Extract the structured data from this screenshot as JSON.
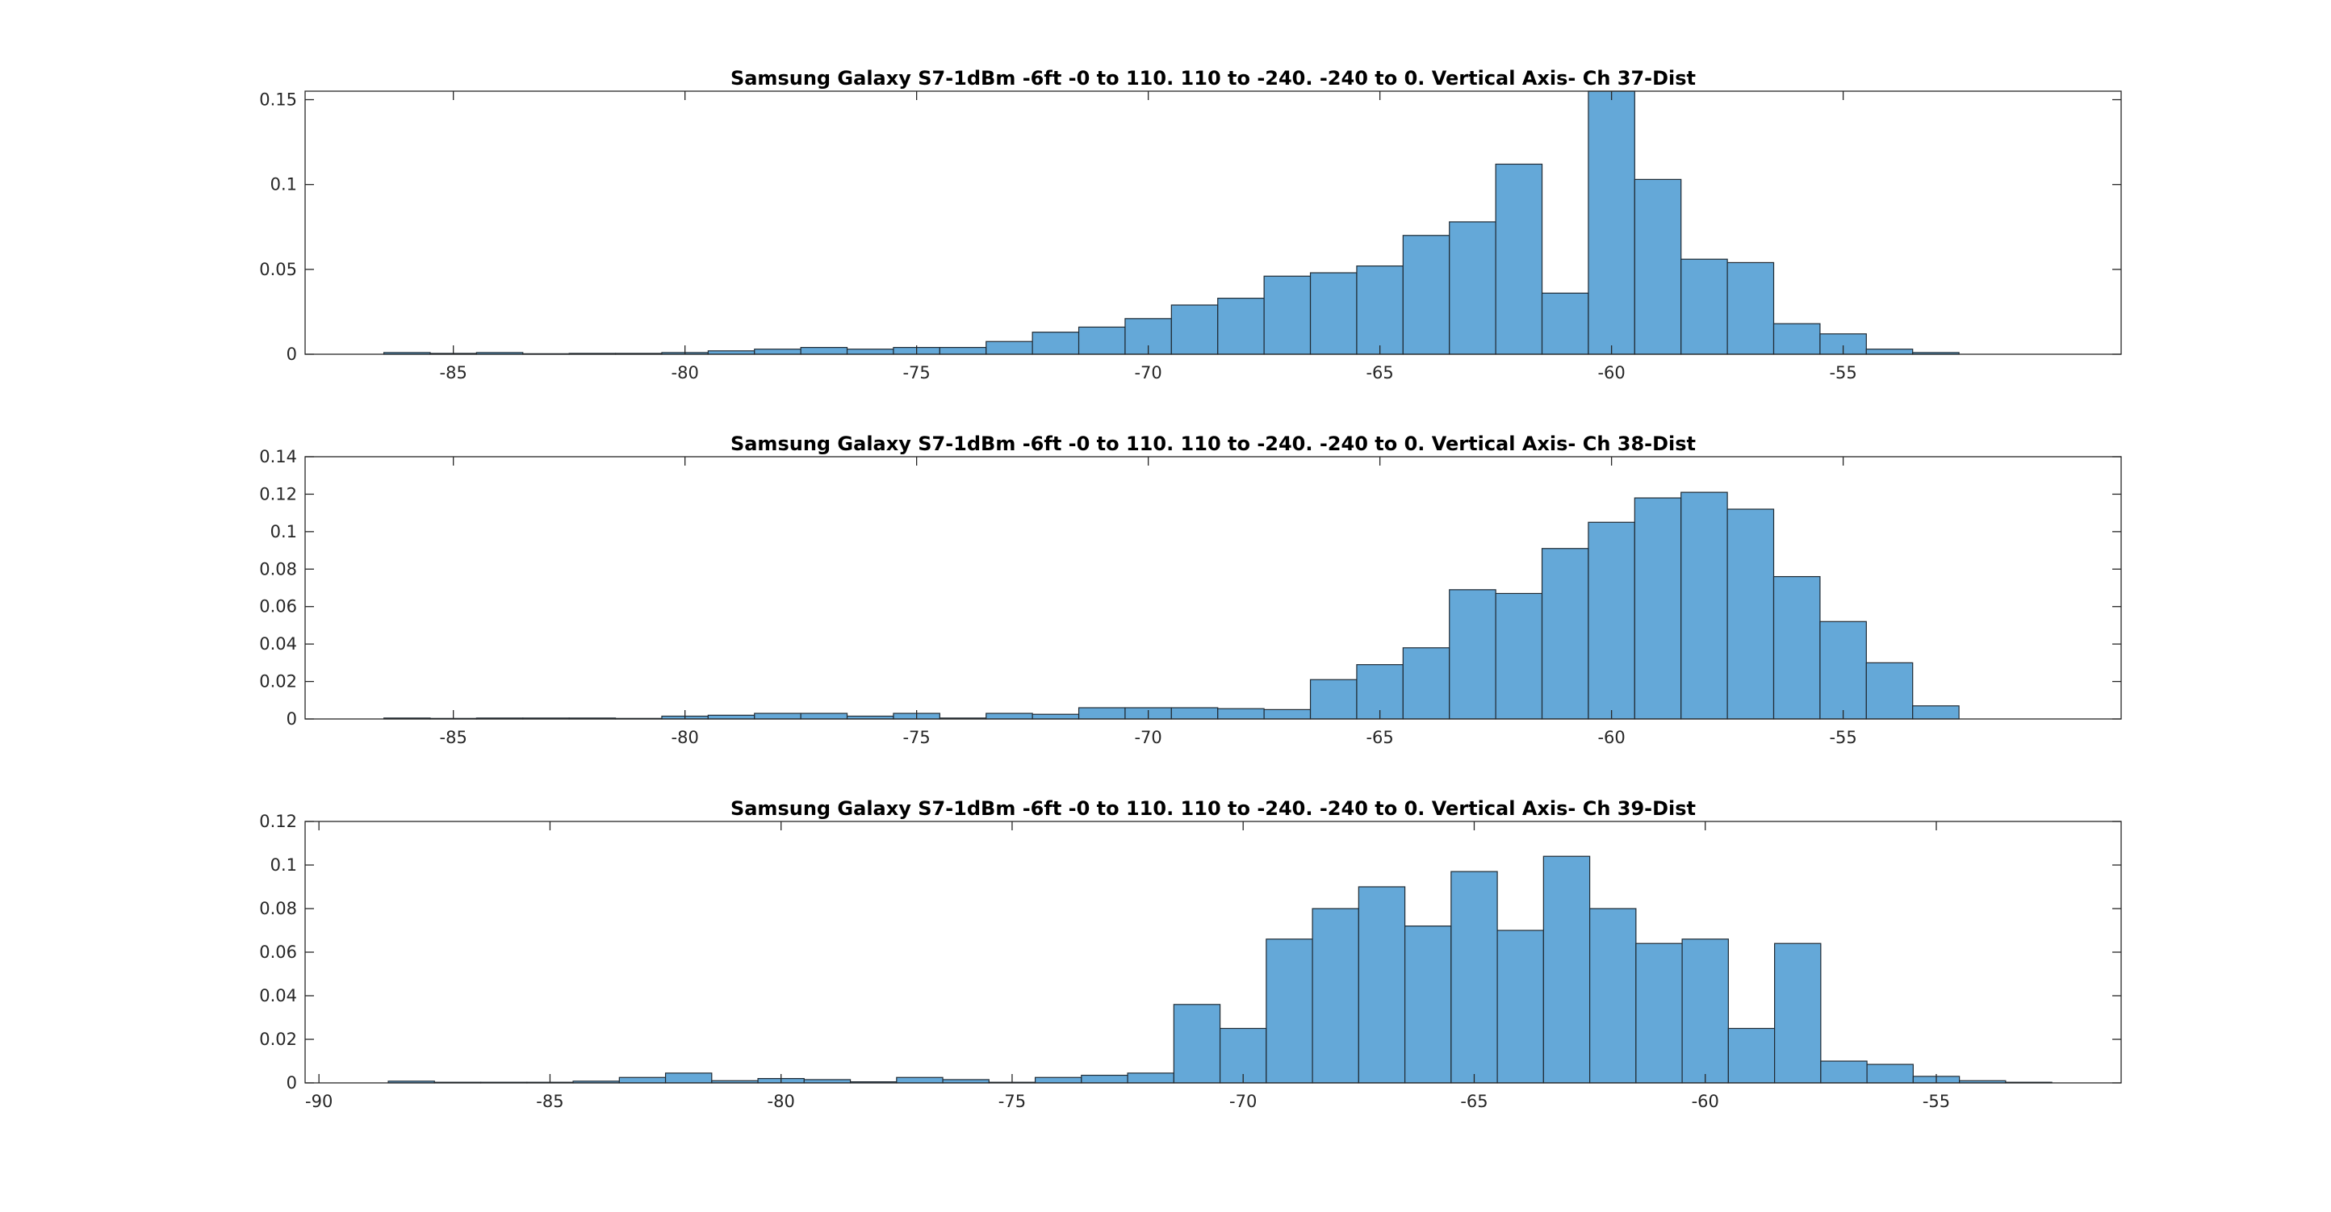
{
  "figure": {
    "background": "#ffffff",
    "bar_color": "#64a8d8",
    "edge_color": "#1f2a33"
  },
  "chart_data": [
    {
      "type": "bar",
      "title": "Samsung Galaxy S7-1dBm -6ft -0 to 110. 110 to -240. -240 to 0. Vertical Axis- Ch 37-Dist",
      "xlabel": "",
      "ylabel": "",
      "xlim": [
        -88.2,
        -49.0
      ],
      "ylim": [
        0,
        0.155
      ],
      "xticks": [
        -85,
        -80,
        -75,
        -70,
        -65,
        -60,
        -55
      ],
      "yticks": [
        0,
        0.05,
        0.1,
        0.15
      ],
      "xtick_labels": [
        "-85",
        "-80",
        "-75",
        "-70",
        "-65",
        "-60",
        "-55"
      ],
      "ytick_labels": [
        "0",
        "0.05",
        "0.1",
        "0.15"
      ],
      "grid": false,
      "bin_width": 1,
      "bin_edges_start": -86.5,
      "values": [
        0.001,
        0.0005,
        0.001,
        0.0003,
        0.0005,
        0.0005,
        0.001,
        0.002,
        0.003,
        0.004,
        0.003,
        0.004,
        0.004,
        0.0075,
        0.013,
        0.016,
        0.021,
        0.029,
        0.033,
        0.046,
        0.048,
        0.052,
        0.07,
        0.078,
        0.112,
        0.036,
        0.155,
        0.103,
        0.056,
        0.054,
        0.018,
        0.012,
        0.003,
        0.001
      ]
    },
    {
      "type": "bar",
      "title": "Samsung Galaxy S7-1dBm -6ft -0 to 110. 110 to -240. -240 to 0. Vertical Axis- Ch 38-Dist",
      "xlabel": "",
      "ylabel": "",
      "xlim": [
        -88.2,
        -49.0
      ],
      "ylim": [
        0,
        0.14
      ],
      "xticks": [
        -85,
        -80,
        -75,
        -70,
        -65,
        -60,
        -55
      ],
      "yticks": [
        0,
        0.02,
        0.04,
        0.06,
        0.08,
        0.1,
        0.12,
        0.14
      ],
      "xtick_labels": [
        "-85",
        "-80",
        "-75",
        "-70",
        "-65",
        "-60",
        "-55"
      ],
      "ytick_labels": [
        "0",
        "0.02",
        "0.04",
        "0.06",
        "0.08",
        "0.1",
        "0.12",
        "0.14"
      ],
      "grid": false,
      "bin_width": 1,
      "bin_edges_start": -86.5,
      "values": [
        0.0005,
        0.0003,
        0.0005,
        0.0005,
        0.0005,
        0.0003,
        0.0015,
        0.002,
        0.003,
        0.003,
        0.0015,
        0.003,
        0.0005,
        0.003,
        0.0025,
        0.006,
        0.006,
        0.006,
        0.0055,
        0.005,
        0.021,
        0.029,
        0.038,
        0.069,
        0.067,
        0.091,
        0.105,
        0.118,
        0.121,
        0.112,
        0.076,
        0.052,
        0.03,
        0.007
      ]
    },
    {
      "type": "bar",
      "title": "Samsung Galaxy S7-1dBm -6ft -0 to 110. 110 to -240. -240 to 0. Vertical Axis- Ch 39-Dist",
      "xlabel": "",
      "ylabel": "",
      "xlim": [
        -90.3,
        -51.0
      ],
      "ylim": [
        0,
        0.12
      ],
      "xticks": [
        -90,
        -85,
        -80,
        -75,
        -70,
        -65,
        -60,
        -55
      ],
      "yticks": [
        0,
        0.02,
        0.04,
        0.06,
        0.08,
        0.1,
        0.12
      ],
      "xtick_labels": [
        "-90",
        "-85",
        "-80",
        "-75",
        "-70",
        "-65",
        "-60",
        "-55"
      ],
      "ytick_labels": [
        "0",
        "0.02",
        "0.04",
        "0.06",
        "0.08",
        "0.1",
        "0.12"
      ],
      "grid": false,
      "bin_width": 1,
      "bin_edges_start": -88.5,
      "values": [
        0.0008,
        0.0003,
        0.0003,
        0.0003,
        0.0008,
        0.0025,
        0.0045,
        0.001,
        0.002,
        0.0015,
        0.0005,
        0.0025,
        0.0015,
        0.0003,
        0.0025,
        0.0035,
        0.0045,
        0.036,
        0.025,
        0.066,
        0.08,
        0.09,
        0.072,
        0.097,
        0.07,
        0.104,
        0.08,
        0.064,
        0.066,
        0.025,
        0.064,
        0.01,
        0.0085,
        0.003,
        0.001,
        0.0003
      ]
    }
  ]
}
